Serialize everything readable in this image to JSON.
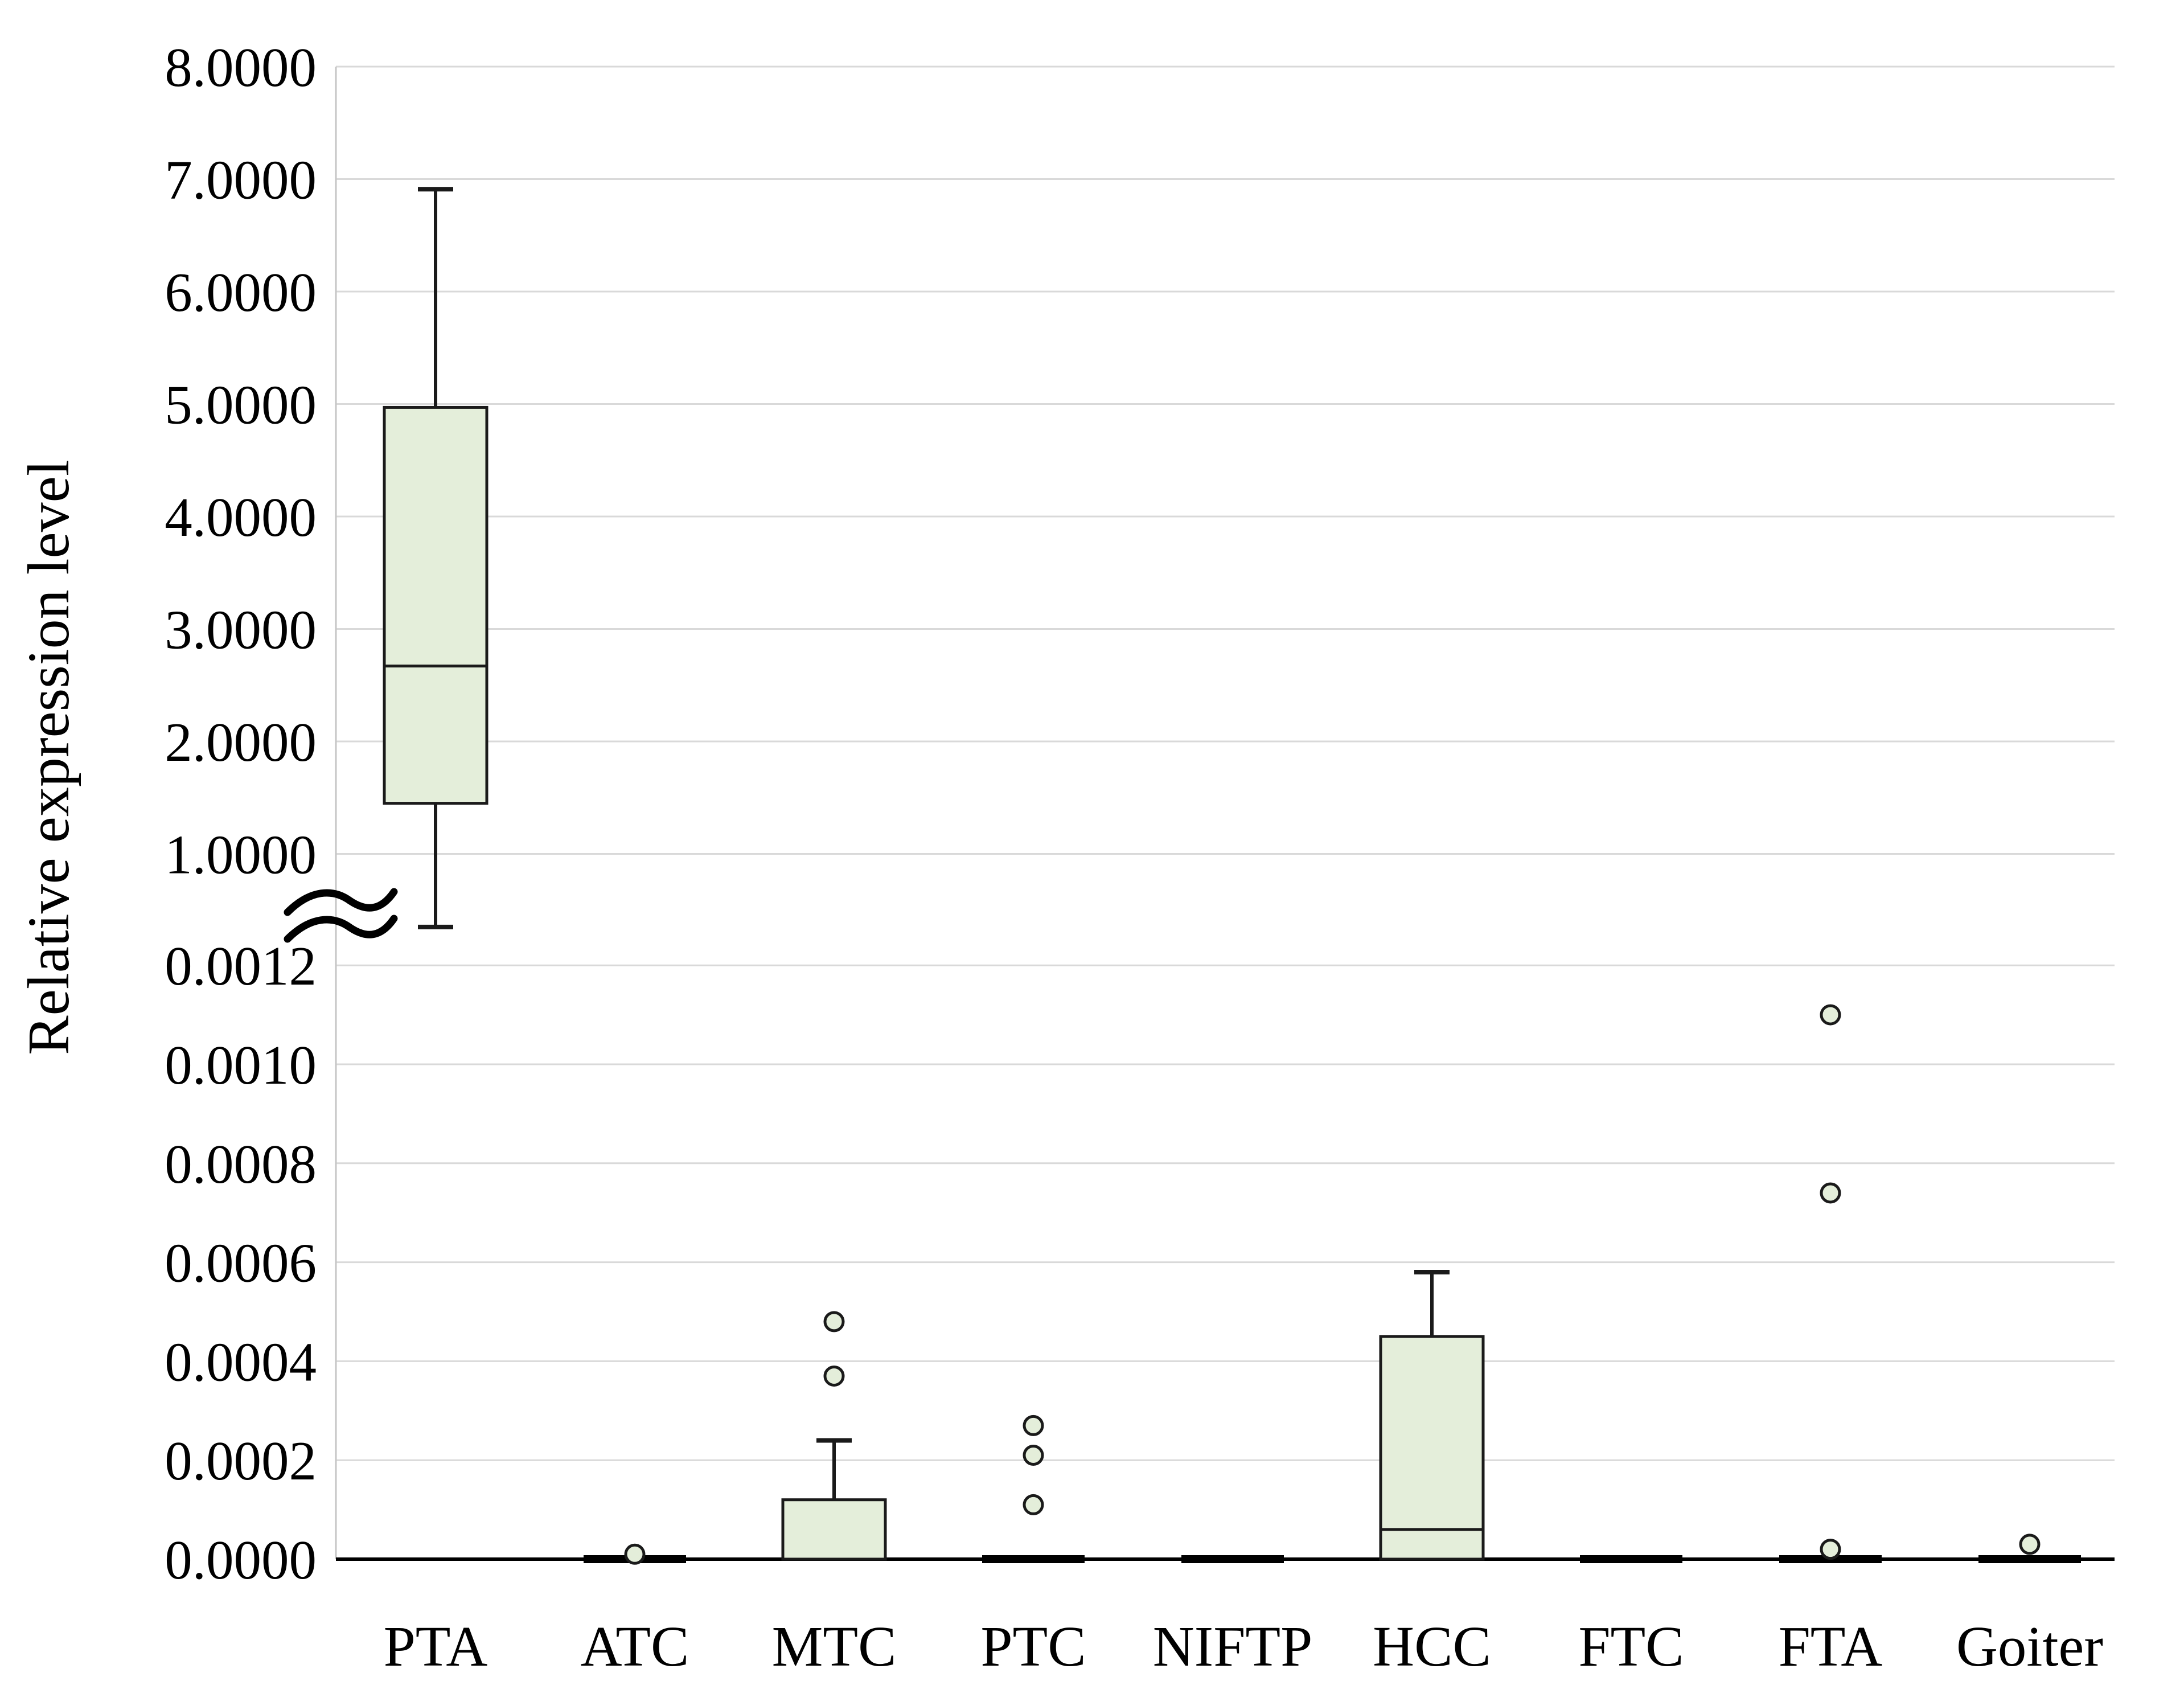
{
  "colors": {
    "background": "#ffffff",
    "box_fill": "#e4eeda",
    "box_border": "#1a1a1a",
    "median_line": "#1a1a1a",
    "whisker": "#1a1a1a",
    "gridline": "#d9d9d9",
    "y_axis_line": "#c6c6c6",
    "zero_baseline": "#000000",
    "collapsed_box": "#000000",
    "outlier_stroke": "#1a1a1a",
    "outlier_fill": "#e4eeda",
    "break_marker": "#000000",
    "text": "#000000"
  },
  "chart_data": {
    "type": "boxplot",
    "title": "",
    "xlabel": "",
    "ylabel": "Relative expression level",
    "categories": [
      "PTA",
      "ATC",
      "MTC",
      "PTC",
      "NIFTP",
      "HCC",
      "FTC",
      "FTA",
      "Goiter"
    ],
    "y_axis": {
      "broken": true,
      "break_marker": "≈",
      "upper_ticks": [
        "8.0000",
        "7.0000",
        "6.0000",
        "5.0000",
        "4.0000",
        "3.0000",
        "2.0000",
        "1.0000"
      ],
      "upper_tick_values": [
        8.0,
        7.0,
        6.0,
        5.0,
        4.0,
        3.0,
        2.0,
        1.0
      ],
      "upper_range": [
        1.0,
        8.0
      ],
      "lower_ticks": [
        "0.0012",
        "0.0010",
        "0.0008",
        "0.0006",
        "0.0004",
        "0.0002",
        "0.0000"
      ],
      "lower_tick_values": [
        0.0012,
        0.001,
        0.0008,
        0.0006,
        0.0004,
        0.0002,
        0.0
      ],
      "lower_range": [
        0.0,
        0.0012
      ],
      "grid": true,
      "legend": "none"
    },
    "series": [
      {
        "category": "PTA",
        "scale": "upper",
        "whisker_low": 0.35,
        "q1": 1.45,
        "median": 2.67,
        "q3": 4.97,
        "whisker_high": 6.91,
        "outliers": []
      },
      {
        "category": "ATC",
        "scale": "lower",
        "whisker_low": 0,
        "q1": 0,
        "median": 0,
        "q3": 0,
        "whisker_high": 0,
        "outliers": [
          1e-05
        ]
      },
      {
        "category": "MTC",
        "scale": "lower",
        "whisker_low": 0,
        "q1": 0,
        "median": 0,
        "q3": 0.00012,
        "whisker_high": 0.00024,
        "outliers": [
          0.00037,
          0.00048
        ]
      },
      {
        "category": "PTC",
        "scale": "lower",
        "whisker_low": 0,
        "q1": 0,
        "median": 0,
        "q3": 0,
        "whisker_high": 0,
        "outliers": [
          0.00011,
          0.00021,
          0.00027
        ]
      },
      {
        "category": "NIFTP",
        "scale": "lower",
        "whisker_low": 0,
        "q1": 0,
        "median": 0,
        "q3": 0,
        "whisker_high": 0,
        "outliers": []
      },
      {
        "category": "HCC",
        "scale": "lower",
        "whisker_low": 0,
        "q1": 0,
        "median": 6e-05,
        "q3": 0.00045,
        "whisker_high": 0.00058,
        "outliers": []
      },
      {
        "category": "FTC",
        "scale": "lower",
        "whisker_low": 0,
        "q1": 0,
        "median": 0,
        "q3": 0,
        "whisker_high": 0,
        "outliers": []
      },
      {
        "category": "FTA",
        "scale": "lower",
        "whisker_low": 0,
        "q1": 0,
        "median": 0,
        "q3": 0,
        "whisker_high": 0,
        "outliers": [
          2e-05,
          0.00074,
          0.0011
        ]
      },
      {
        "category": "Goiter",
        "scale": "lower",
        "whisker_low": 0,
        "q1": 0,
        "median": 0,
        "q3": 0,
        "whisker_high": 0,
        "outliers": [
          3e-05
        ]
      }
    ]
  }
}
